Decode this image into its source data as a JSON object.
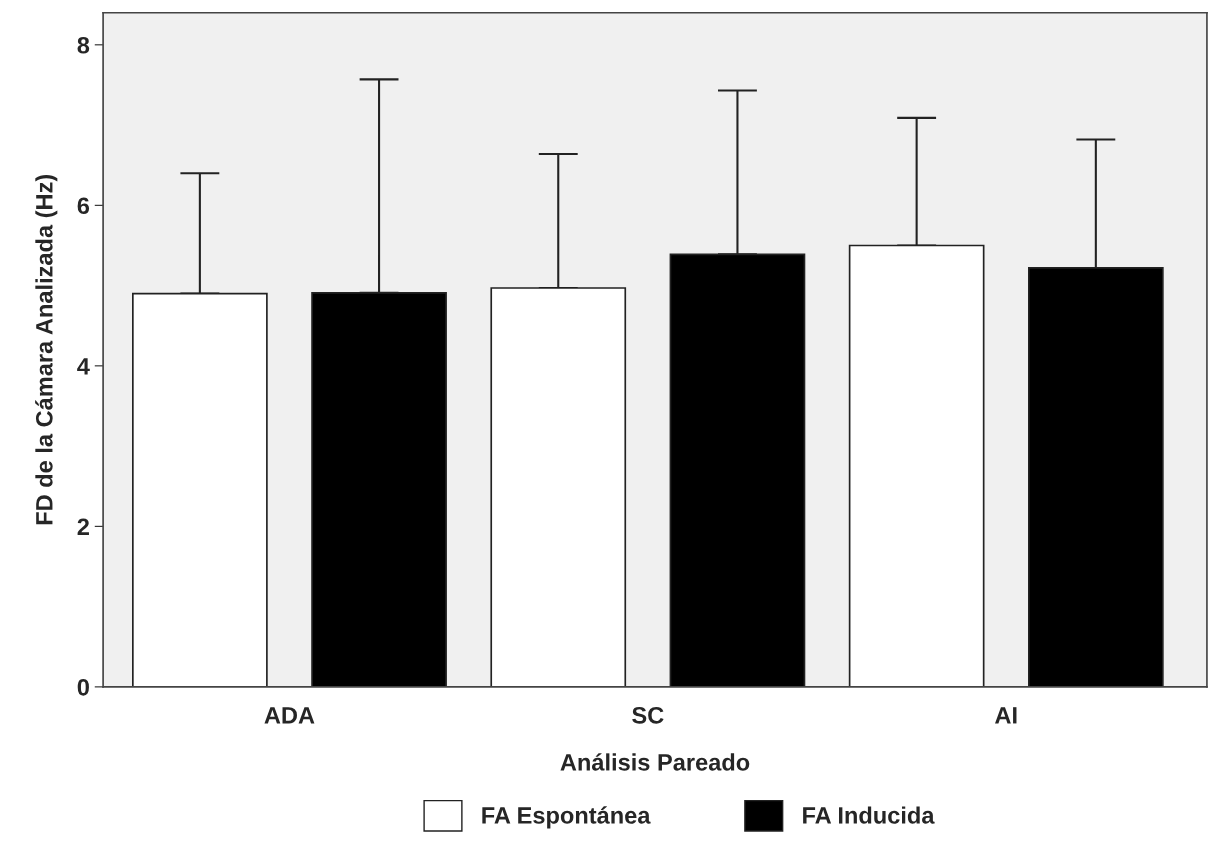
{
  "chart_data": {
    "type": "bar",
    "xlabel": "Análisis Pareado",
    "ylabel": "FD de la Cámara Analizada (Hz)",
    "categories": [
      "ADA",
      "SC",
      "AI"
    ],
    "series": [
      {
        "name": "FA Espontánea",
        "color": "#ffffff",
        "values": [
          4.9,
          4.97,
          5.5
        ],
        "errors": [
          [
            4.9,
            6.4
          ],
          [
            4.97,
            6.64
          ],
          [
            5.5,
            7.09
          ]
        ]
      },
      {
        "name": "FA Inducida",
        "color": "#000000",
        "values": [
          4.91,
          5.39,
          5.22
        ],
        "errors": [
          [
            4.91,
            7.57
          ],
          [
            5.39,
            7.43
          ],
          [
            5.22,
            6.82
          ]
        ]
      }
    ],
    "ylim": [
      0,
      8.4
    ],
    "yticks": [
      0,
      2,
      4,
      6,
      8
    ],
    "grid": false,
    "legend": "bottom"
  }
}
